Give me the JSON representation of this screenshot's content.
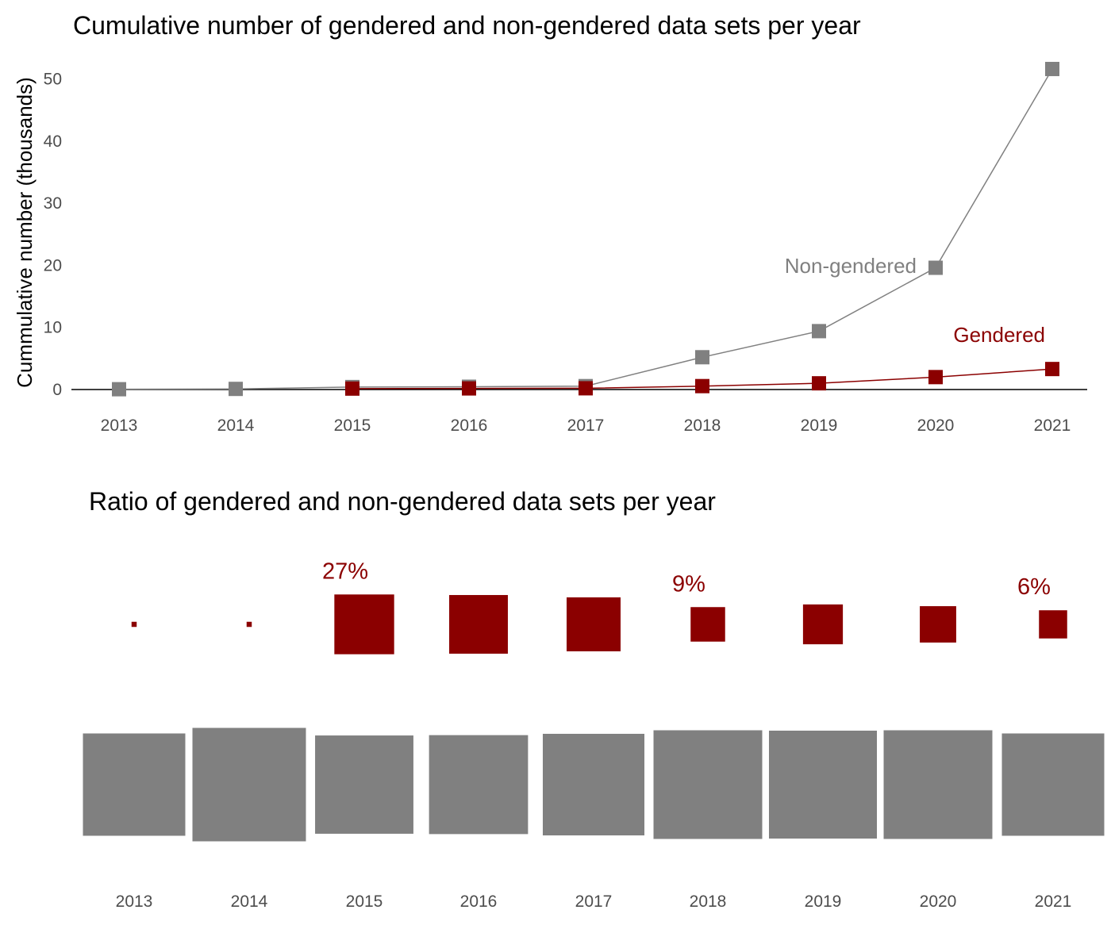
{
  "colors": {
    "gendered": "#8B0000",
    "non_gendered": "#808080",
    "axis": "#000000",
    "tick_text": "#4d4d4d"
  },
  "chart_data": [
    {
      "type": "line",
      "title": "Cumulative number of gendered and non-gendered data sets per year",
      "xlabel": "",
      "ylabel": "Cummulative number (thousands)",
      "x": [
        2013,
        2014,
        2015,
        2016,
        2017,
        2018,
        2019,
        2020,
        2021
      ],
      "ylim": [
        0,
        53
      ],
      "yticks": [
        0,
        10,
        20,
        30,
        40,
        50
      ],
      "grid": false,
      "series": [
        {
          "name": "Non-gendered",
          "color": "#808080",
          "values": [
            0.05,
            0.1,
            0.4,
            0.45,
            0.55,
            5.2,
            9.4,
            19.6,
            51.6
          ]
        },
        {
          "name": "Gendered",
          "color": "#8B0000",
          "values": [
            null,
            null,
            0.15,
            0.18,
            0.2,
            0.55,
            1.0,
            2.0,
            3.3
          ]
        }
      ],
      "marker": "square"
    },
    {
      "type": "bar",
      "title": "Ratio of gendered and non-gendered data sets per year",
      "categories": [
        "2013",
        "2014",
        "2015",
        "2016",
        "2017",
        "2018",
        "2019",
        "2020",
        "2021"
      ],
      "series": [
        {
          "name": "Gendered",
          "color": "#8B0000",
          "values": [
            0.002,
            0.002,
            0.27,
            0.26,
            0.22,
            0.09,
            0.12,
            0.1,
            0.06
          ]
        },
        {
          "name": "Non-gendered",
          "color": "#808080",
          "values": [
            0.998,
            0.998,
            0.73,
            0.74,
            0.78,
            0.91,
            0.88,
            0.9,
            0.94
          ]
        }
      ],
      "annotations": [
        {
          "category": "2015",
          "text": "27%"
        },
        {
          "category": "2018",
          "text": "9%"
        },
        {
          "category": "2021",
          "text": "6%"
        }
      ]
    }
  ]
}
